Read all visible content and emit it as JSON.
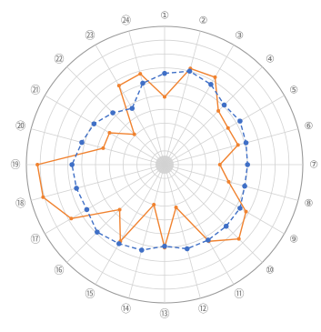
{
  "chart_data": {
    "type": "radar",
    "title": "",
    "categories": [
      "①",
      "②",
      "③",
      "④",
      "⑤",
      "⑥",
      "⑦",
      "⑧",
      "⑨",
      "⑩",
      "⑪",
      "⑫",
      "⑬",
      "⑭",
      "⑮",
      "⑯",
      "⑰",
      "⑱",
      "⑲",
      "⑳",
      "㉑",
      "㉒",
      "㉓",
      "㉔"
    ],
    "rlim": [
      0,
      10
    ],
    "grid": true,
    "series": [
      {
        "line_style": "solid",
        "color": "#f0822f",
        "values": [
          4.9,
          7.2,
          7.3,
          5.5,
          5.3,
          5.5,
          4.0,
          4.8,
          6.8,
          7.6,
          6.4,
          3.2,
          6.0,
          3.0,
          6.4,
          4.6,
          7.8,
          9.1,
          9.2,
          4.6,
          4.6,
          3.1,
          6.6,
          6.8
        ]
      },
      {
        "line_style": "dashed",
        "color": "#3f6fc6",
        "values": [
          6.6,
          7.0,
          6.7,
          6.1,
          6.3,
          6.1,
          6.0,
          6.0,
          6.3,
          6.3,
          6.3,
          6.3,
          5.9,
          6.4,
          6.6,
          6.9,
          6.5,
          6.6,
          6.7,
          6.2,
          5.9,
          5.3,
          4.7,
          6.1
        ]
      }
    ]
  }
}
